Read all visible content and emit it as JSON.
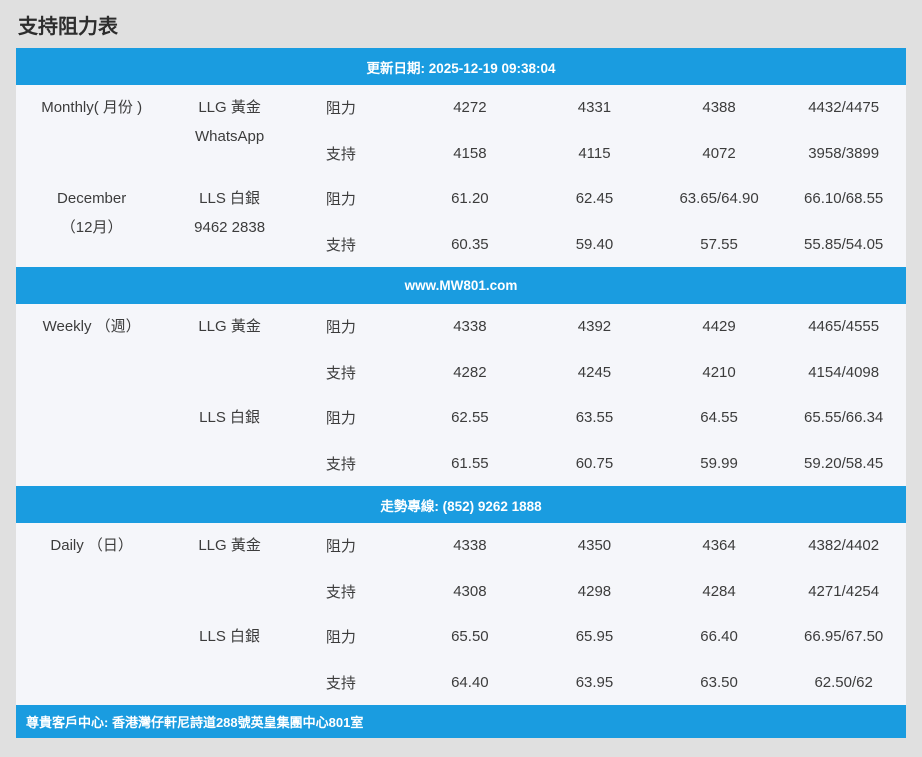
{
  "page": {
    "title": "支持阻力表"
  },
  "colors": {
    "accent_blue": "#1a9ce0",
    "row_background": "#f5f6fa",
    "page_background": "#e0e0e0",
    "text": "#3c3c3c"
  },
  "table": {
    "update_bar": "更新日期: 2025-12-19 09:38:04",
    "website_bar": "www.MW801.com",
    "hotline_bar": "走勢專線: (852) 9262 1888",
    "footer_bar": "尊貴客戶中心: 香港灣仔軒尼詩道288號英皇集團中心801室",
    "sections": [
      {
        "name": "monthly",
        "period_top_line1": "Monthly( 月份 )",
        "period_bottom_line1": "December",
        "period_bottom_line2": "（12月）",
        "product_top_line1": "LLG 黃金",
        "product_top_line2": "WhatsApp",
        "product_bottom_line1": "LLS 白銀",
        "product_bottom_line2": "9462 2838",
        "rows": [
          {
            "label": "阻力",
            "values": [
              "4272",
              "4331",
              "4388",
              "4432/4475"
            ]
          },
          {
            "label": "支持",
            "values": [
              "4158",
              "4115",
              "4072",
              "3958/3899"
            ]
          },
          {
            "label": "阻力",
            "values": [
              "61.20",
              "62.45",
              "63.65/64.90",
              "66.10/68.55"
            ]
          },
          {
            "label": "支持",
            "values": [
              "60.35",
              "59.40",
              "57.55",
              "55.85/54.05"
            ]
          }
        ]
      },
      {
        "name": "weekly",
        "period_top_line1": "Weekly （週）",
        "product_top_line1": "LLG 黃金",
        "product_bottom_line1": "LLS 白銀",
        "rows": [
          {
            "label": "阻力",
            "values": [
              "4338",
              "4392",
              "4429",
              "4465/4555"
            ]
          },
          {
            "label": "支持",
            "values": [
              "4282",
              "4245",
              "4210",
              "4154/4098"
            ]
          },
          {
            "label": "阻力",
            "values": [
              "62.55",
              "63.55",
              "64.55",
              "65.55/66.34"
            ]
          },
          {
            "label": "支持",
            "values": [
              "61.55",
              "60.75",
              "59.99",
              "59.20/58.45"
            ]
          }
        ]
      },
      {
        "name": "daily",
        "period_top_line1": "Daily （日）",
        "product_top_line1": "LLG 黃金",
        "product_bottom_line1": "LLS 白銀",
        "rows": [
          {
            "label": "阻力",
            "values": [
              "4338",
              "4350",
              "4364",
              "4382/4402"
            ]
          },
          {
            "label": "支持",
            "values": [
              "4308",
              "4298",
              "4284",
              "4271/4254"
            ]
          },
          {
            "label": "阻力",
            "values": [
              "65.50",
              "65.95",
              "66.40",
              "66.95/67.50"
            ]
          },
          {
            "label": "支持",
            "values": [
              "64.40",
              "63.95",
              "63.50",
              "62.50/62"
            ]
          }
        ]
      }
    ]
  }
}
